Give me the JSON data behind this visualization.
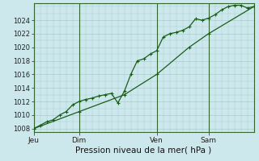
{
  "xlabel": "Pression niveau de la mer( hPa )",
  "bg_color": "#cce8ec",
  "grid_color": "#aacccc",
  "line_color": "#1a5c1a",
  "vline_color": "#336633",
  "ylim": [
    1007.5,
    1026.5
  ],
  "yticks": [
    1008,
    1010,
    1012,
    1014,
    1016,
    1018,
    1020,
    1022,
    1024
  ],
  "day_labels": [
    "Jeu",
    "Dim",
    "Ven",
    "Sam"
  ],
  "day_positions": [
    0,
    42,
    114,
    162
  ],
  "total_hours": 204,
  "line1_x": [
    0,
    6,
    12,
    18,
    24,
    30,
    36,
    42,
    48,
    54,
    60,
    66,
    72,
    78,
    84,
    90,
    96,
    102,
    108,
    114,
    120,
    126,
    132,
    138,
    144,
    150,
    156,
    162,
    168,
    174,
    180,
    186,
    192,
    198,
    204
  ],
  "line1_y": [
    1008,
    1008.5,
    1009,
    1009.3,
    1010,
    1010.5,
    1011.5,
    1012,
    1012.3,
    1012.5,
    1012.8,
    1013,
    1013.2,
    1011.8,
    1013.5,
    1016,
    1018,
    1018.3,
    1019,
    1019.5,
    1021.5,
    1022,
    1022.2,
    1022.5,
    1023,
    1024.2,
    1024,
    1024.3,
    1024.8,
    1025.5,
    1026,
    1026.2,
    1026.2,
    1025.8,
    1026
  ],
  "line2_x": [
    0,
    42,
    84,
    114,
    144,
    162,
    204
  ],
  "line2_y": [
    1008,
    1010.5,
    1013,
    1016,
    1020,
    1022,
    1026
  ]
}
